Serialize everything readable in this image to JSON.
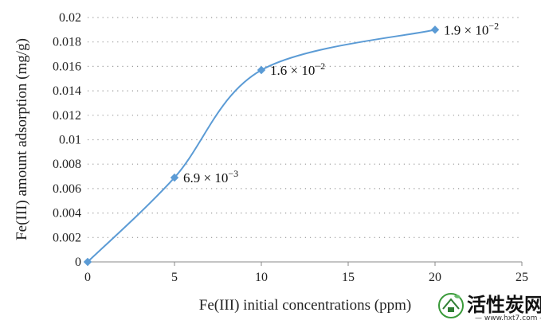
{
  "chart_data": {
    "type": "scatter",
    "mode": "smooth line with markers",
    "xlabel": "Fe(III) initial concentrations (ppm)",
    "ylabel": "Fe(III) amount adsorption (mg/g)",
    "xlim": [
      0,
      25
    ],
    "ylim": [
      0,
      0.02
    ],
    "xticks": [
      "0",
      "5",
      "10",
      "15",
      "20",
      "25"
    ],
    "yticks": [
      "0",
      "0.002",
      "0.004",
      "0.006",
      "0.008",
      "0.01",
      "0.012",
      "0.014",
      "0.016",
      "0.018",
      "0.02"
    ],
    "grid": "horizontal dotted",
    "series": [
      {
        "x": [
          0,
          5,
          10,
          20
        ],
        "y": [
          0,
          0.0069,
          0.0157,
          0.019
        ],
        "color": "#5b9bd5"
      }
    ],
    "annotations": [
      {
        "mantissa": "6.9 × 10",
        "exponent": "−3"
      },
      {
        "mantissa": "1.6 × 10",
        "exponent": "−2"
      },
      {
        "mantissa": "1.9 × 10",
        "exponent": "−2"
      }
    ]
  },
  "watermark": {
    "text": "活性炭网",
    "url": "www.hxt7.com"
  }
}
